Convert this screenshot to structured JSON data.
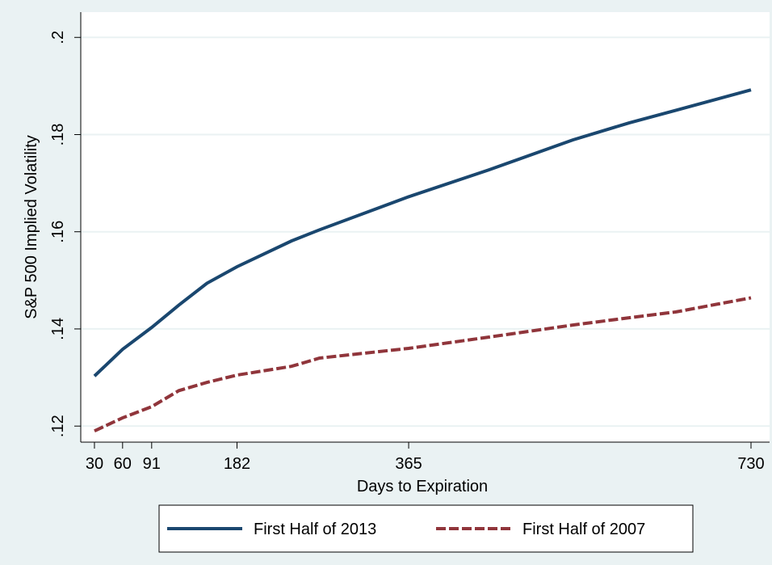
{
  "chart_data": {
    "type": "line",
    "y_label": "S&P 500 Implied Volatility",
    "x_label": "Days to Expiration",
    "x": [
      30,
      60,
      91,
      120,
      150,
      182,
      240,
      270,
      365,
      450,
      540,
      600,
      650,
      730
    ],
    "series": [
      {
        "name": "First Half of 2013",
        "color": "#1a476f",
        "dash": "solid",
        "values": [
          0.1303,
          0.1358,
          0.1403,
          0.1449,
          0.1494,
          0.1528,
          0.1581,
          0.1604,
          0.1672,
          0.1727,
          0.1789,
          0.1824,
          0.185,
          0.1892
        ]
      },
      {
        "name": "First Half of 2007",
        "color": "#90353b",
        "dash": "dashed",
        "values": [
          0.119,
          0.1217,
          0.124,
          0.1273,
          0.129,
          0.1305,
          0.1323,
          0.134,
          0.136,
          0.1383,
          0.1408,
          0.1423,
          0.1435,
          0.1464
        ]
      }
    ],
    "xlim": [
      15.4,
      749.8
    ],
    "xticks": [
      30,
      60,
      91,
      182,
      365,
      730
    ],
    "ylim": [
      0.1167,
      0.2052
    ],
    "yticks": [
      {
        "value": 0.12,
        "label": ".12"
      },
      {
        "value": 0.14,
        "label": ".14"
      },
      {
        "value": 0.16,
        "label": ".16"
      },
      {
        "value": 0.18,
        "label": ".18"
      },
      {
        "value": 0.2,
        "label": ".2"
      }
    ],
    "grid": true,
    "legend": "bottom"
  }
}
